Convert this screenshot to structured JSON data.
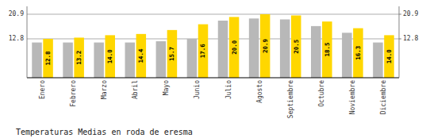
{
  "chart_data": {
    "type": "bar",
    "title": "Temperaturas Medias en roda de eresma",
    "categories": [
      "Enero",
      "Febrero",
      "Marzo",
      "Abril",
      "Mayo",
      "Junio",
      "Julio",
      "Agosto",
      "Septiembre",
      "Octubre",
      "Noviembre",
      "Diciembre"
    ],
    "series": [
      {
        "color": "#B8B8B8",
        "values": [
          11.6,
          11.6,
          11.6,
          11.6,
          12.0,
          12.8,
          18.8,
          19.5,
          19.2,
          17.0,
          14.8,
          11.6
        ]
      },
      {
        "color": "#FFD700",
        "values": [
          12.8,
          13.2,
          14.0,
          14.4,
          15.7,
          17.6,
          20.0,
          20.9,
          20.5,
          18.5,
          16.3,
          14.0
        ],
        "data_labels": true,
        "value_labels": [
          "12.8",
          "13.2",
          "14.0",
          "14.4",
          "15.7",
          "17.6",
          "20.0",
          "20.9",
          "20.5",
          "18.5",
          "16.3",
          "14.0"
        ]
      }
    ],
    "ylim": [
      0,
      23.5
    ],
    "yticks": [
      12.8,
      20.9
    ],
    "y2lim": [
      0,
      23.5
    ],
    "y2ticks": [
      12.8,
      20.9
    ],
    "grid": true
  }
}
